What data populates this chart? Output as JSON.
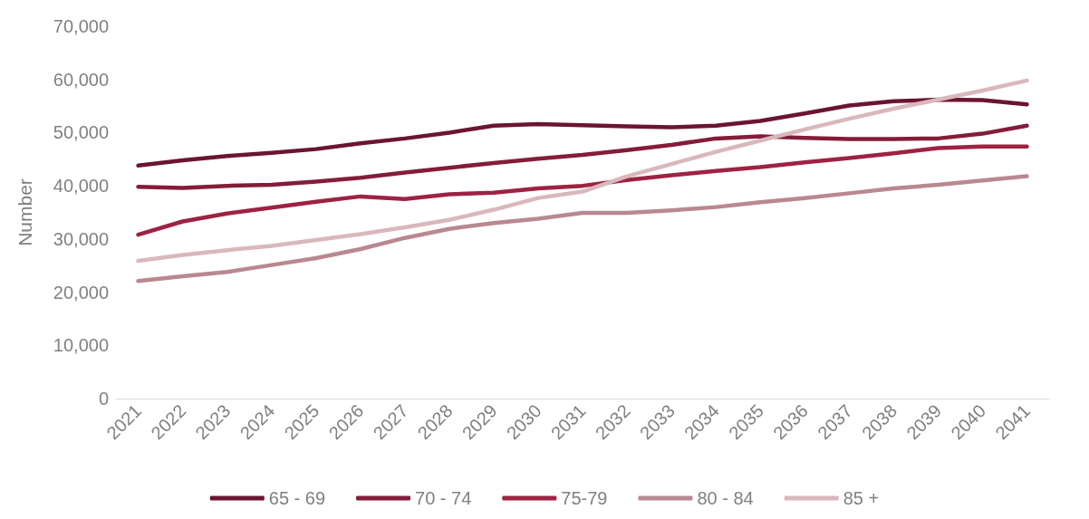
{
  "chart_data": {
    "type": "line",
    "ylabel": "Number",
    "categories": [
      "2021",
      "2022",
      "2023",
      "2024",
      "2025",
      "2026",
      "2027",
      "2028",
      "2029",
      "2030",
      "2031",
      "2032",
      "2033",
      "2034",
      "2035",
      "2036",
      "2037",
      "2038",
      "2039",
      "2040",
      "2041"
    ],
    "series": [
      {
        "name": "65 - 69",
        "color": "#6b1530",
        "values": [
          43800,
          44800,
          45600,
          46200,
          46900,
          48000,
          48900,
          50000,
          51300,
          51600,
          51400,
          51200,
          51000,
          51300,
          52200,
          53600,
          55100,
          55900,
          56200,
          56100,
          55300
        ]
      },
      {
        "name": "70 - 74",
        "color": "#841c3a",
        "values": [
          39800,
          39600,
          40000,
          40200,
          40800,
          41500,
          42500,
          43400,
          44300,
          45100,
          45800,
          46700,
          47700,
          48900,
          49300,
          49000,
          48800,
          48800,
          48900,
          49800,
          51300
        ]
      },
      {
        "name": "75-79",
        "color": "#9e2242",
        "values": [
          30800,
          33300,
          34800,
          35900,
          37000,
          38000,
          37500,
          38400,
          38700,
          39500,
          40000,
          41100,
          42000,
          42800,
          43500,
          44400,
          45200,
          46100,
          47100,
          47400,
          47400
        ]
      },
      {
        "name": "80 - 84",
        "color": "#b98890",
        "values": [
          22100,
          23000,
          23800,
          25100,
          26400,
          28100,
          30200,
          31900,
          33000,
          33800,
          34900,
          34900,
          35400,
          36000,
          36900,
          37700,
          38600,
          39500,
          40200,
          41000,
          41800
        ]
      },
      {
        "name": "85 +",
        "color": "#d9b8bd",
        "values": [
          25900,
          27000,
          27900,
          28700,
          29800,
          30900,
          32200,
          33600,
          35500,
          37700,
          38900,
          41800,
          44100,
          46400,
          48500,
          50600,
          52600,
          54500,
          56200,
          57900,
          59800
        ]
      }
    ],
    "ylim": [
      0,
      70000
    ],
    "yticks": [
      0,
      {
        "value": 10000,
        "label": "10,000"
      },
      {
        "value": 20000,
        "label": "20,000"
      },
      {
        "value": 30000,
        "label": "30,000"
      },
      {
        "value": 40000,
        "label": "40,000"
      },
      {
        "value": 50000,
        "label": "50,000"
      },
      {
        "value": 60000,
        "label": "60,000"
      },
      {
        "value": 70000,
        "label": "70,000"
      }
    ],
    "grid": false,
    "legend": "bottom",
    "marker": "none",
    "line_style": "solid"
  }
}
